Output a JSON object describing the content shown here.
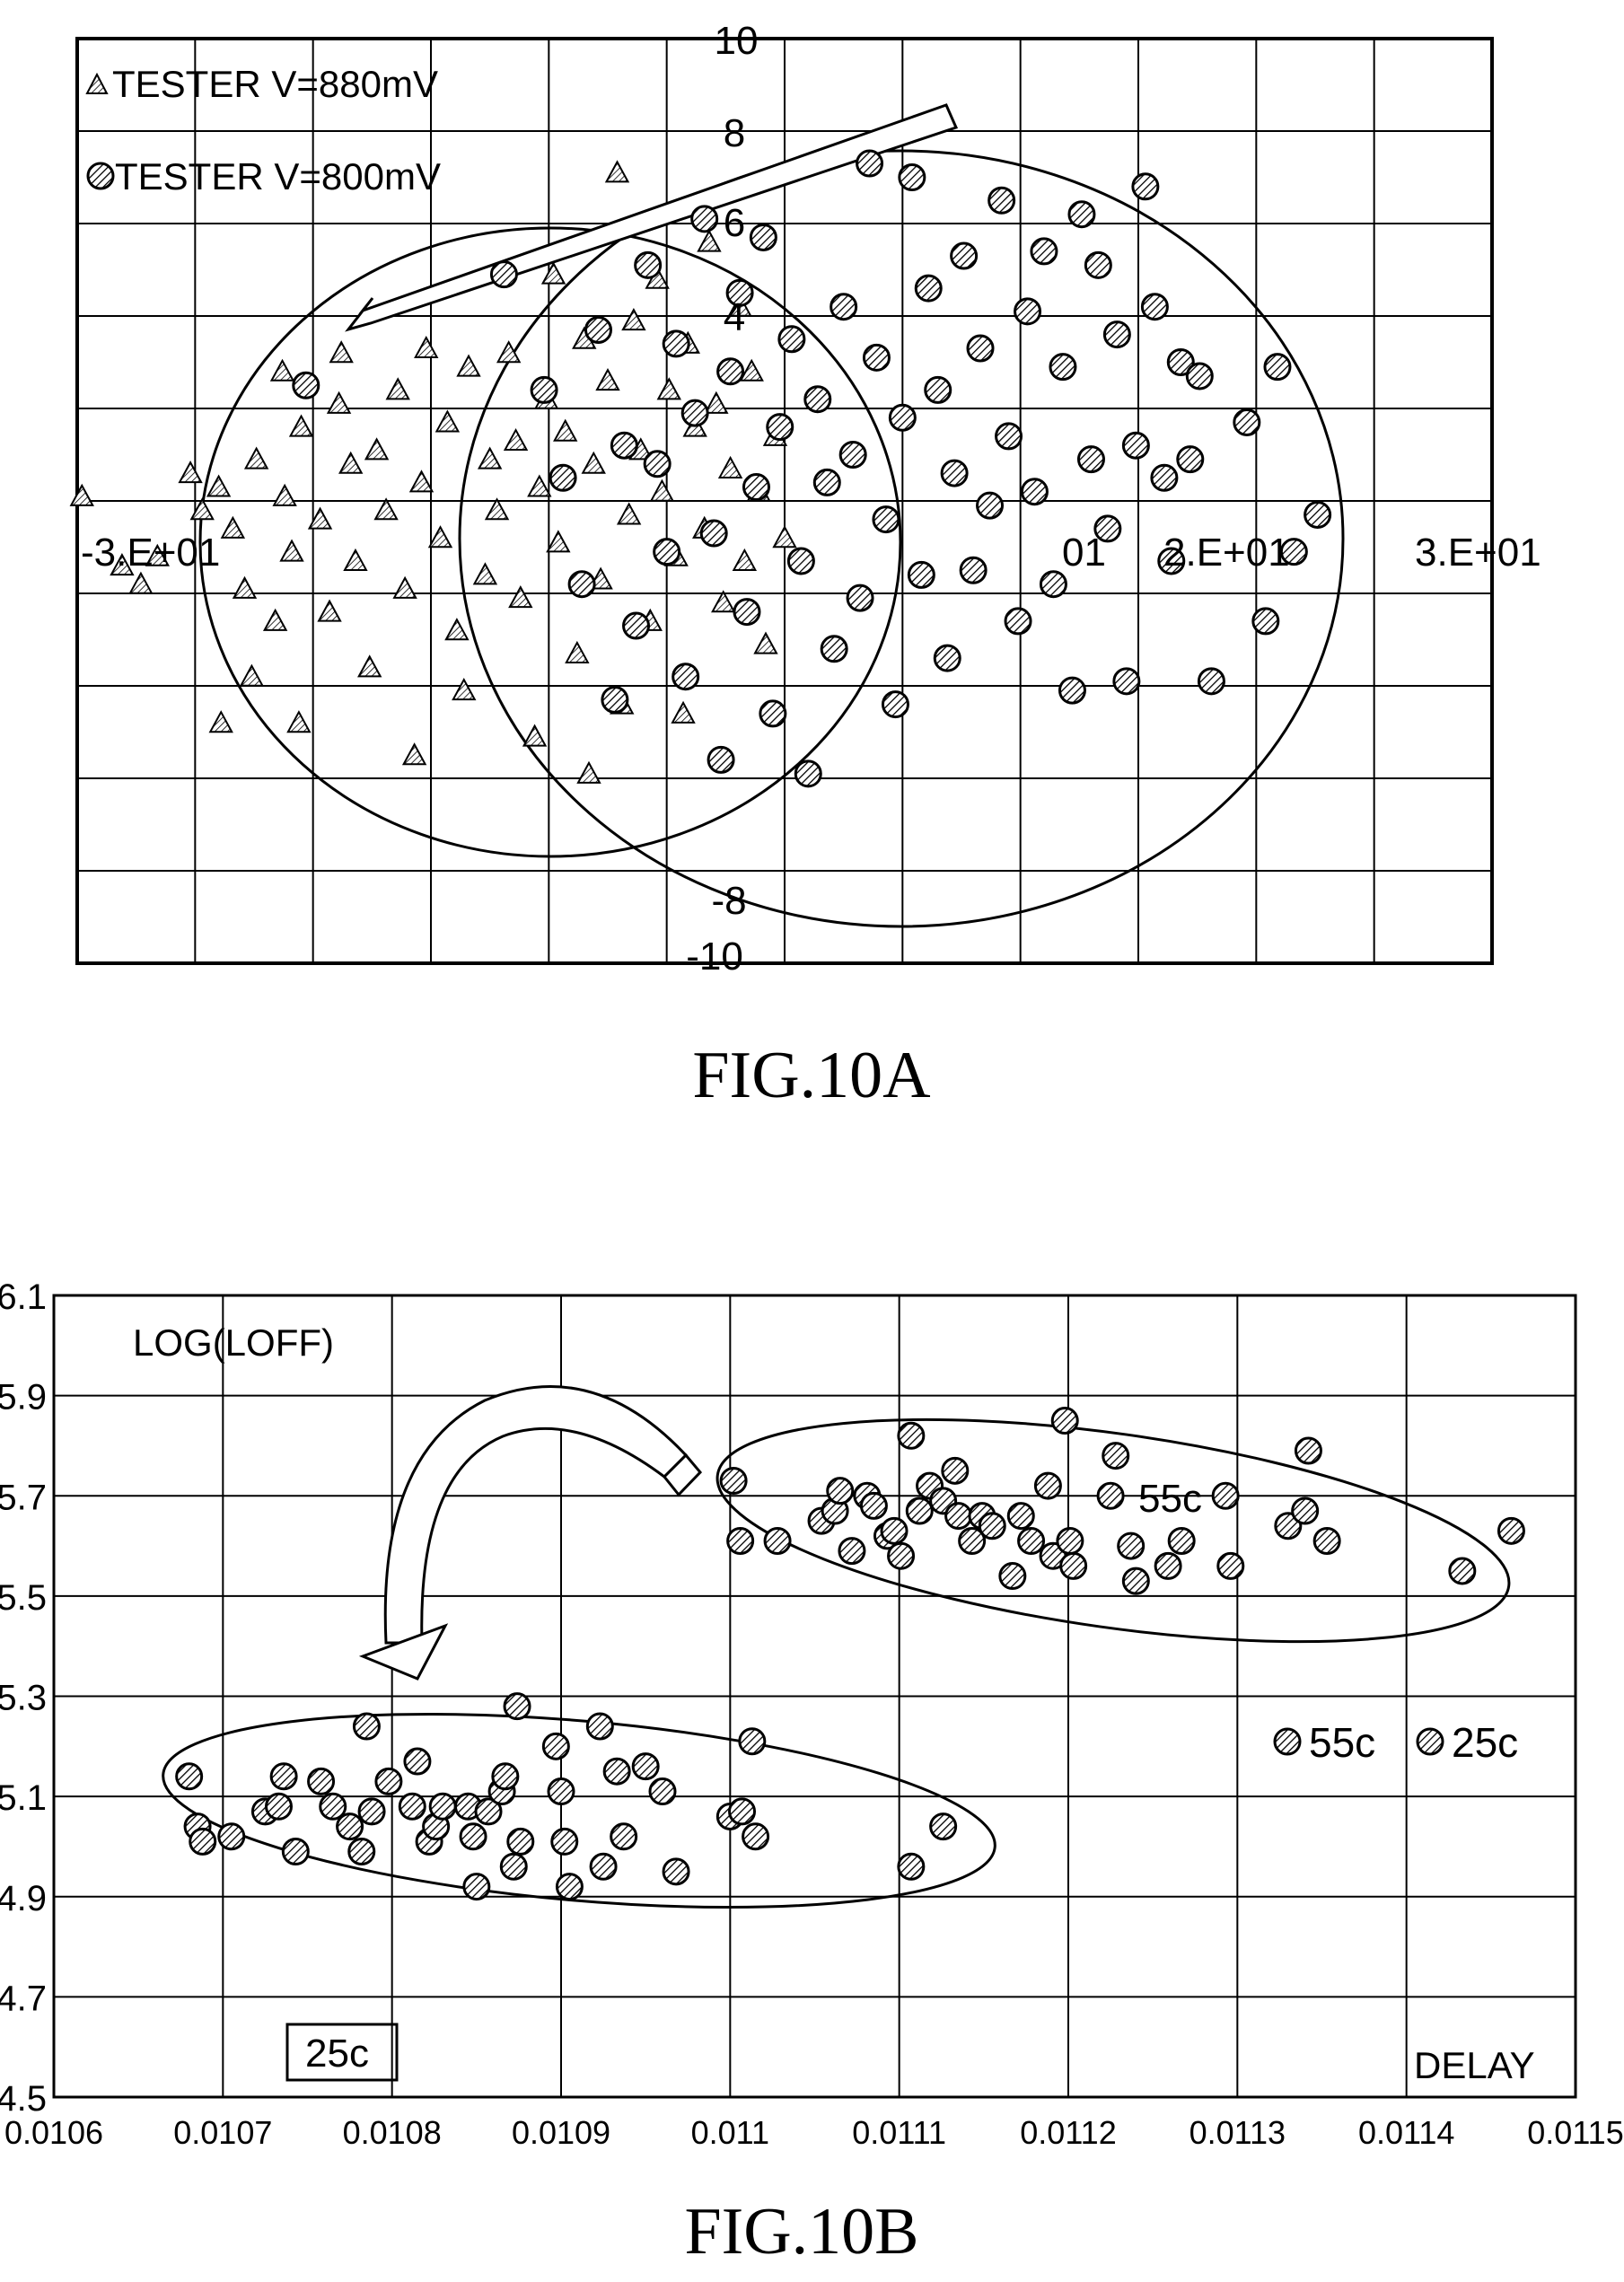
{
  "figures": {
    "a_caption": "FIG.10A",
    "b_caption": "FIG.10B"
  },
  "chart_data": [
    {
      "type": "scatter",
      "title": "",
      "xlabel": "",
      "ylabel": "",
      "xlim": [
        -30,
        30
      ],
      "ylim": [
        -10,
        10
      ],
      "x_tick_labels": [
        "-3.E+01",
        "01",
        "2.E+01",
        "3.E+01"
      ],
      "y_tick_labels": [
        "10",
        "8",
        "6",
        "4",
        "-8",
        "-10"
      ],
      "grid": true,
      "legend_position": "top-left",
      "legend": [
        {
          "marker": "triangle",
          "label": "TESTER V=880mV"
        },
        {
          "marker": "circle",
          "label": "TESTER V=800mV"
        }
      ],
      "annotations": [
        "arrow from upper-right to upper-left indicating cluster shift",
        "two ellipses enclosing each cluster"
      ],
      "series": [
        {
          "name": "TESTER V=880mV",
          "marker": "triangle",
          "points": [
            [
              -29.8,
              0.1
            ],
            [
              -28.1,
              -1.4
            ],
            [
              -27.3,
              -1.8
            ],
            [
              -26.6,
              -1.2
            ],
            [
              -25.2,
              0.6
            ],
            [
              -24.7,
              -0.2
            ],
            [
              -23.9,
              -4.8
            ],
            [
              -24,
              0.3
            ],
            [
              -23.4,
              -0.6
            ],
            [
              -22.9,
              -1.9
            ],
            [
              -22.6,
              -3.8
            ],
            [
              -22.4,
              0.9
            ],
            [
              -21.6,
              -2.6
            ],
            [
              -21.3,
              2.8
            ],
            [
              -21.2,
              0.1
            ],
            [
              -20.9,
              -1.1
            ],
            [
              -20.6,
              -4.8
            ],
            [
              -20.5,
              1.6
            ],
            [
              -19.7,
              -0.4
            ],
            [
              -19.3,
              -2.4
            ],
            [
              -18.9,
              2.1
            ],
            [
              -18.8,
              3.2
            ],
            [
              -18.4,
              0.8
            ],
            [
              -18.2,
              -1.3
            ],
            [
              -17.6,
              -3.6
            ],
            [
              -17.3,
              1.1
            ],
            [
              -16.9,
              -0.2
            ],
            [
              -16.4,
              2.4
            ],
            [
              -16.1,
              -1.9
            ],
            [
              -15.7,
              -5.5
            ],
            [
              -15.4,
              0.4
            ],
            [
              -15.2,
              3.3
            ],
            [
              -14.6,
              -0.8
            ],
            [
              -14.3,
              1.7
            ],
            [
              -13.9,
              -2.8
            ],
            [
              -13.6,
              -4.1
            ],
            [
              -13.4,
              2.9
            ],
            [
              -12.7,
              -1.6
            ],
            [
              -12.5,
              0.9
            ],
            [
              -12.2,
              -0.2
            ],
            [
              -11.7,
              3.2
            ],
            [
              -11.4,
              1.3
            ],
            [
              -11.2,
              -2.1
            ],
            [
              -10.6,
              -5.1
            ],
            [
              -10.4,
              0.3
            ],
            [
              -10.1,
              2.2
            ],
            [
              -9.8,
              4.9
            ],
            [
              -9.6,
              -0.9
            ],
            [
              -9.3,
              1.5
            ],
            [
              -8.8,
              -3.3
            ],
            [
              -8.5,
              3.5
            ],
            [
              -8.3,
              -5.9
            ],
            [
              -8.1,
              0.8
            ],
            [
              -7.8,
              -1.7
            ],
            [
              -7.5,
              2.6
            ],
            [
              -7.1,
              7.1
            ],
            [
              -6.9,
              -4.4
            ],
            [
              -6.6,
              -0.3
            ],
            [
              -6.4,
              3.9
            ],
            [
              -6.1,
              1.1
            ],
            [
              -5.7,
              -2.6
            ],
            [
              -5.4,
              4.8
            ],
            [
              -5.2,
              0.2
            ],
            [
              -4.9,
              2.4
            ],
            [
              -4.6,
              -1.2
            ],
            [
              -4.3,
              -4.6
            ],
            [
              -4.1,
              3.4
            ],
            [
              -3.8,
              1.6
            ],
            [
              -3.4,
              -0.6
            ],
            [
              -3.2,
              5.6
            ],
            [
              -2.9,
              2.1
            ],
            [
              -2.6,
              -2.2
            ],
            [
              -2.3,
              0.7
            ],
            [
              -1.9,
              4.2
            ],
            [
              -1.7,
              -1.3
            ],
            [
              -1.4,
              2.8
            ],
            [
              -1.1,
              0.2
            ],
            [
              -0.8,
              -3.1
            ],
            [
              -0.4,
              1.4
            ],
            [
              0,
              -0.8
            ]
          ]
        },
        {
          "name": "TESTER V=800mV",
          "marker": "circle",
          "points": [
            [
              -20.3,
              2.5
            ],
            [
              -11.9,
              4.9
            ],
            [
              -10.2,
              2.4
            ],
            [
              -9.4,
              0.5
            ],
            [
              -8.6,
              -1.8
            ],
            [
              -7.9,
              3.7
            ],
            [
              -7.2,
              -4.3
            ],
            [
              -6.8,
              1.2
            ],
            [
              -6.3,
              -2.7
            ],
            [
              -5.8,
              5.1
            ],
            [
              -5.4,
              0.8
            ],
            [
              -5,
              -1.1
            ],
            [
              -4.6,
              3.4
            ],
            [
              -4.2,
              -3.8
            ],
            [
              -3.8,
              1.9
            ],
            [
              -3.4,
              6.1
            ],
            [
              -3,
              -0.7
            ],
            [
              -2.7,
              -5.6
            ],
            [
              -2.3,
              2.8
            ],
            [
              -1.9,
              4.5
            ],
            [
              -1.6,
              -2.4
            ],
            [
              -1.2,
              0.3
            ],
            [
              -0.9,
              5.7
            ],
            [
              -0.5,
              -4.6
            ],
            [
              -0.2,
              1.6
            ],
            [
              0.3,
              3.5
            ],
            [
              0.7,
              -1.3
            ],
            [
              1,
              -5.9
            ],
            [
              1.4,
              2.2
            ],
            [
              1.8,
              0.4
            ],
            [
              2.1,
              -3.2
            ],
            [
              2.5,
              4.2
            ],
            [
              2.9,
              1
            ],
            [
              3.2,
              -2.1
            ],
            [
              3.6,
              7.3
            ],
            [
              3.9,
              3.1
            ],
            [
              4.3,
              -0.4
            ],
            [
              4.7,
              -4.4
            ],
            [
              5,
              1.8
            ],
            [
              5.4,
              7
            ],
            [
              5.8,
              -1.6
            ],
            [
              6.1,
              4.6
            ],
            [
              6.5,
              2.4
            ],
            [
              6.9,
              -3.4
            ],
            [
              7.2,
              0.6
            ],
            [
              7.6,
              5.3
            ],
            [
              8,
              -1.5
            ],
            [
              8.3,
              3.3
            ],
            [
              8.7,
              -0.1
            ],
            [
              9.2,
              6.5
            ],
            [
              9.5,
              1.4
            ],
            [
              9.9,
              -2.6
            ],
            [
              10.3,
              4.1
            ],
            [
              10.6,
              0.2
            ],
            [
              11,
              5.4
            ],
            [
              11.4,
              -1.8
            ],
            [
              11.8,
              2.9
            ],
            [
              12.2,
              -4.1
            ],
            [
              12.6,
              6.2
            ],
            [
              13,
              0.9
            ],
            [
              13.3,
              5.1
            ],
            [
              13.7,
              -0.6
            ],
            [
              14.1,
              3.6
            ],
            [
              14.5,
              -3.9
            ],
            [
              14.9,
              1.2
            ],
            [
              15.3,
              6.8
            ],
            [
              15.7,
              4.2
            ],
            [
              16.1,
              0.5
            ],
            [
              16.4,
              -1.3
            ],
            [
              16.8,
              3
            ],
            [
              17.2,
              0.9
            ],
            [
              17.6,
              2.7
            ],
            [
              18.1,
              -3.9
            ],
            [
              19.6,
              1.7
            ],
            [
              20.4,
              -2.6
            ],
            [
              20.9,
              2.9
            ],
            [
              21.6,
              -1.1
            ],
            [
              22.6,
              -0.3
            ]
          ]
        }
      ]
    },
    {
      "type": "scatter",
      "title": "",
      "xlabel": "DELAY",
      "ylabel": "LOG(LOFF)",
      "xlim": [
        0.0106,
        0.0115
      ],
      "ylim": [
        4.5,
        6.1
      ],
      "x_tick_labels": [
        "0.0106",
        "0.0107",
        "0.0108",
        "0.0109",
        "0.011",
        "0.0111",
        "0.0112",
        "0.0113",
        "0.0114",
        "0.0115"
      ],
      "y_tick_labels": [
        "6.1",
        "5.9",
        "5.7",
        "5.5",
        "5.3",
        "5.1",
        "4.9",
        "4.7",
        "4.5"
      ],
      "grid": true,
      "legend_position": "right",
      "legend": [
        {
          "marker": "circle",
          "label": "55c"
        },
        {
          "marker": "circle",
          "label": "25c"
        }
      ],
      "annotations": [
        "55c",
        "25c"
      ],
      "series": [
        {
          "name": "25c",
          "marker": "circle",
          "points": [
            [
              0.01068,
              5.14
            ],
            [
              0.010685,
              5.04
            ],
            [
              0.010688,
              5.01
            ],
            [
              0.010705,
              5.02
            ],
            [
              0.010725,
              5.07
            ],
            [
              0.010733,
              5.08
            ],
            [
              0.010736,
              5.14
            ],
            [
              0.010743,
              4.99
            ],
            [
              0.010758,
              5.13
            ],
            [
              0.010765,
              5.08
            ],
            [
              0.010775,
              5.04
            ],
            [
              0.010782,
              4.99
            ],
            [
              0.010785,
              5.24
            ],
            [
              0.010788,
              5.07
            ],
            [
              0.010798,
              5.13
            ],
            [
              0.010812,
              5.08
            ],
            [
              0.010815,
              5.17
            ],
            [
              0.010822,
              5.01
            ],
            [
              0.010826,
              5.04
            ],
            [
              0.01083,
              5.08
            ],
            [
              0.010845,
              5.08
            ],
            [
              0.010848,
              5.02
            ],
            [
              0.01085,
              4.92
            ],
            [
              0.010857,
              5.07
            ],
            [
              0.010865,
              5.11
            ],
            [
              0.010867,
              5.14
            ],
            [
              0.010872,
              4.96
            ],
            [
              0.010874,
              5.28
            ],
            [
              0.010876,
              5.01
            ],
            [
              0.010897,
              5.2
            ],
            [
              0.0109,
              5.11
            ],
            [
              0.010902,
              5.01
            ],
            [
              0.010905,
              4.92
            ],
            [
              0.010923,
              5.24
            ],
            [
              0.010925,
              4.96
            ],
            [
              0.010933,
              5.15
            ],
            [
              0.010937,
              5.02
            ],
            [
              0.01095,
              5.16
            ],
            [
              0.01096,
              5.11
            ],
            [
              0.010968,
              4.95
            ],
            [
              0.011,
              5.06
            ],
            [
              0.011007,
              5.07
            ],
            [
              0.011013,
              5.21
            ],
            [
              0.011015,
              5.02
            ],
            [
              0.011107,
              4.96
            ],
            [
              0.011126,
              5.04
            ]
          ]
        },
        {
          "name": "55c",
          "marker": "circle",
          "points": [
            [
              0.011002,
              5.73
            ],
            [
              0.011006,
              5.61
            ],
            [
              0.011028,
              5.61
            ],
            [
              0.011054,
              5.65
            ],
            [
              0.011062,
              5.67
            ],
            [
              0.011065,
              5.71
            ],
            [
              0.011072,
              5.59
            ],
            [
              0.011081,
              5.7
            ],
            [
              0.011085,
              5.68
            ],
            [
              0.011093,
              5.62
            ],
            [
              0.011097,
              5.63
            ],
            [
              0.011101,
              5.58
            ],
            [
              0.011107,
              5.82
            ],
            [
              0.011112,
              5.67
            ],
            [
              0.011118,
              5.72
            ],
            [
              0.011126,
              5.69
            ],
            [
              0.011133,
              5.75
            ],
            [
              0.011135,
              5.66
            ],
            [
              0.011143,
              5.61
            ],
            [
              0.011149,
              5.66
            ],
            [
              0.011155,
              5.64
            ],
            [
              0.011167,
              5.54
            ],
            [
              0.011172,
              5.66
            ],
            [
              0.011178,
              5.61
            ],
            [
              0.011188,
              5.72
            ],
            [
              0.011191,
              5.58
            ],
            [
              0.011198,
              5.85
            ],
            [
              0.011201,
              5.61
            ],
            [
              0.011203,
              5.56
            ],
            [
              0.011225,
              5.7
            ],
            [
              0.011228,
              5.78
            ],
            [
              0.011237,
              5.6
            ],
            [
              0.01124,
              5.53
            ],
            [
              0.011259,
              5.56
            ],
            [
              0.011267,
              5.61
            ],
            [
              0.011293,
              5.7
            ],
            [
              0.011296,
              5.56
            ],
            [
              0.01133,
              5.64
            ],
            [
              0.01134,
              5.67
            ],
            [
              0.011342,
              5.79
            ],
            [
              0.011353,
              5.61
            ],
            [
              0.011433,
              5.55
            ],
            [
              0.011462,
              5.63
            ]
          ]
        }
      ]
    }
  ]
}
